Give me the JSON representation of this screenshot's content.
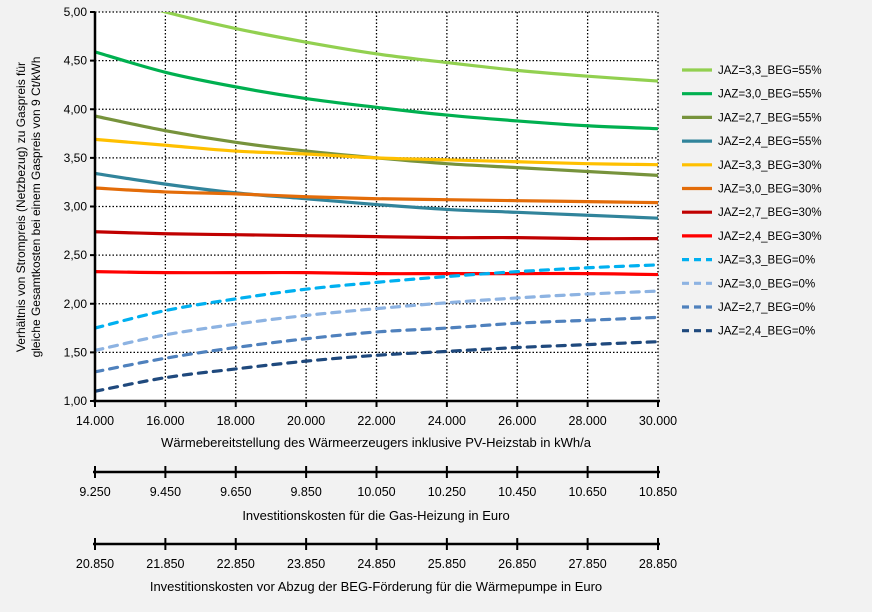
{
  "chart_data": {
    "type": "line",
    "ylabel_lines": [
      "Verhältnis von Strompreis (Netzbezug) zu Gaspreis für",
      "gleiche Gesamtkosten bei einem Gaspreis von 9 Ct/kWh"
    ],
    "xlabel": "Wärmebereitstellung des Wärmeerzeugers inklusive PV-Heizstab in kWh/a",
    "ylim": [
      1.0,
      5.0
    ],
    "xlim": [
      14000,
      30000
    ],
    "grid": true,
    "legend_position": "right",
    "x": [
      14000,
      16000,
      18000,
      20000,
      22000,
      24000,
      26000,
      28000,
      30000
    ],
    "x_tick_labels": [
      "14.000",
      "16.000",
      "18.000",
      "20.000",
      "22.000",
      "24.000",
      "26.000",
      "28.000",
      "30.000"
    ],
    "y_tick_labels": [
      "1,00",
      "1,50",
      "2,00",
      "2,50",
      "3,00",
      "3,50",
      "4,00",
      "4,50",
      "5,00"
    ],
    "secondary_axes": [
      {
        "label": "Investitionskosten für die Gas-Heizung in Euro",
        "tick_labels": [
          "9.250",
          "9.450",
          "9.650",
          "9.850",
          "10.050",
          "10.250",
          "10.450",
          "10.650",
          "10.850"
        ]
      },
      {
        "label": "Investitionskosten vor Abzug der BEG-Förderung für die Wärmepumpe in Euro",
        "tick_labels": [
          "20.850",
          "21.850",
          "22.850",
          "23.850",
          "24.850",
          "25.850",
          "26.850",
          "27.850",
          "28.850"
        ]
      }
    ],
    "series": [
      {
        "name": "JAZ=3,3_BEG=55%",
        "color": "#92d050",
        "dashed": false,
        "values": [
          null,
          5.0,
          4.83,
          4.69,
          4.57,
          4.48,
          4.4,
          4.34,
          4.29
        ]
      },
      {
        "name": "JAZ=3,0_BEG=55%",
        "color": "#00b050",
        "dashed": false,
        "values": [
          4.59,
          4.38,
          4.23,
          4.11,
          4.02,
          3.94,
          3.88,
          3.83,
          3.8
        ]
      },
      {
        "name": "JAZ=2,7_BEG=55%",
        "color": "#77933c",
        "dashed": false,
        "values": [
          3.93,
          3.78,
          3.66,
          3.57,
          3.5,
          3.44,
          3.4,
          3.36,
          3.32
        ]
      },
      {
        "name": "JAZ=2,4_BEG=55%",
        "color": "#31849b",
        "dashed": false,
        "values": [
          3.34,
          3.23,
          3.14,
          3.08,
          3.02,
          2.97,
          2.94,
          2.91,
          2.88
        ]
      },
      {
        "name": "JAZ=3,3_BEG=30%",
        "color": "#ffc000",
        "dashed": false,
        "values": [
          3.69,
          3.63,
          3.57,
          3.54,
          3.5,
          3.48,
          3.46,
          3.44,
          3.43
        ]
      },
      {
        "name": "JAZ=3,0_BEG=30%",
        "color": "#e36c09",
        "dashed": false,
        "values": [
          3.19,
          3.15,
          3.13,
          3.1,
          3.08,
          3.07,
          3.06,
          3.05,
          3.04
        ]
      },
      {
        "name": "JAZ=2,7_BEG=30%",
        "color": "#c00000",
        "dashed": false,
        "values": [
          2.74,
          2.72,
          2.71,
          2.7,
          2.69,
          2.68,
          2.68,
          2.67,
          2.67
        ]
      },
      {
        "name": "JAZ=2,4_BEG=30%",
        "color": "#ff0000",
        "dashed": false,
        "values": [
          2.33,
          2.32,
          2.32,
          2.32,
          2.31,
          2.31,
          2.31,
          2.31,
          2.3
        ]
      },
      {
        "name": "JAZ=3,3_BEG=0%",
        "color": "#00b0f0",
        "dashed": true,
        "values": [
          1.75,
          1.93,
          2.05,
          2.15,
          2.22,
          2.28,
          2.33,
          2.37,
          2.4
        ]
      },
      {
        "name": "JAZ=3,0_BEG=0%",
        "color": "#8db3e2",
        "dashed": true,
        "values": [
          1.52,
          1.68,
          1.79,
          1.88,
          1.95,
          2.01,
          2.06,
          2.1,
          2.13
        ]
      },
      {
        "name": "JAZ=2,7_BEG=0%",
        "color": "#4f81bd",
        "dashed": true,
        "values": [
          1.3,
          1.44,
          1.55,
          1.64,
          1.71,
          1.75,
          1.8,
          1.83,
          1.86
        ]
      },
      {
        "name": "JAZ=2,4_BEG=0%",
        "color": "#1f497d",
        "dashed": true,
        "values": [
          1.1,
          1.24,
          1.33,
          1.41,
          1.47,
          1.51,
          1.55,
          1.58,
          1.61
        ]
      }
    ]
  }
}
